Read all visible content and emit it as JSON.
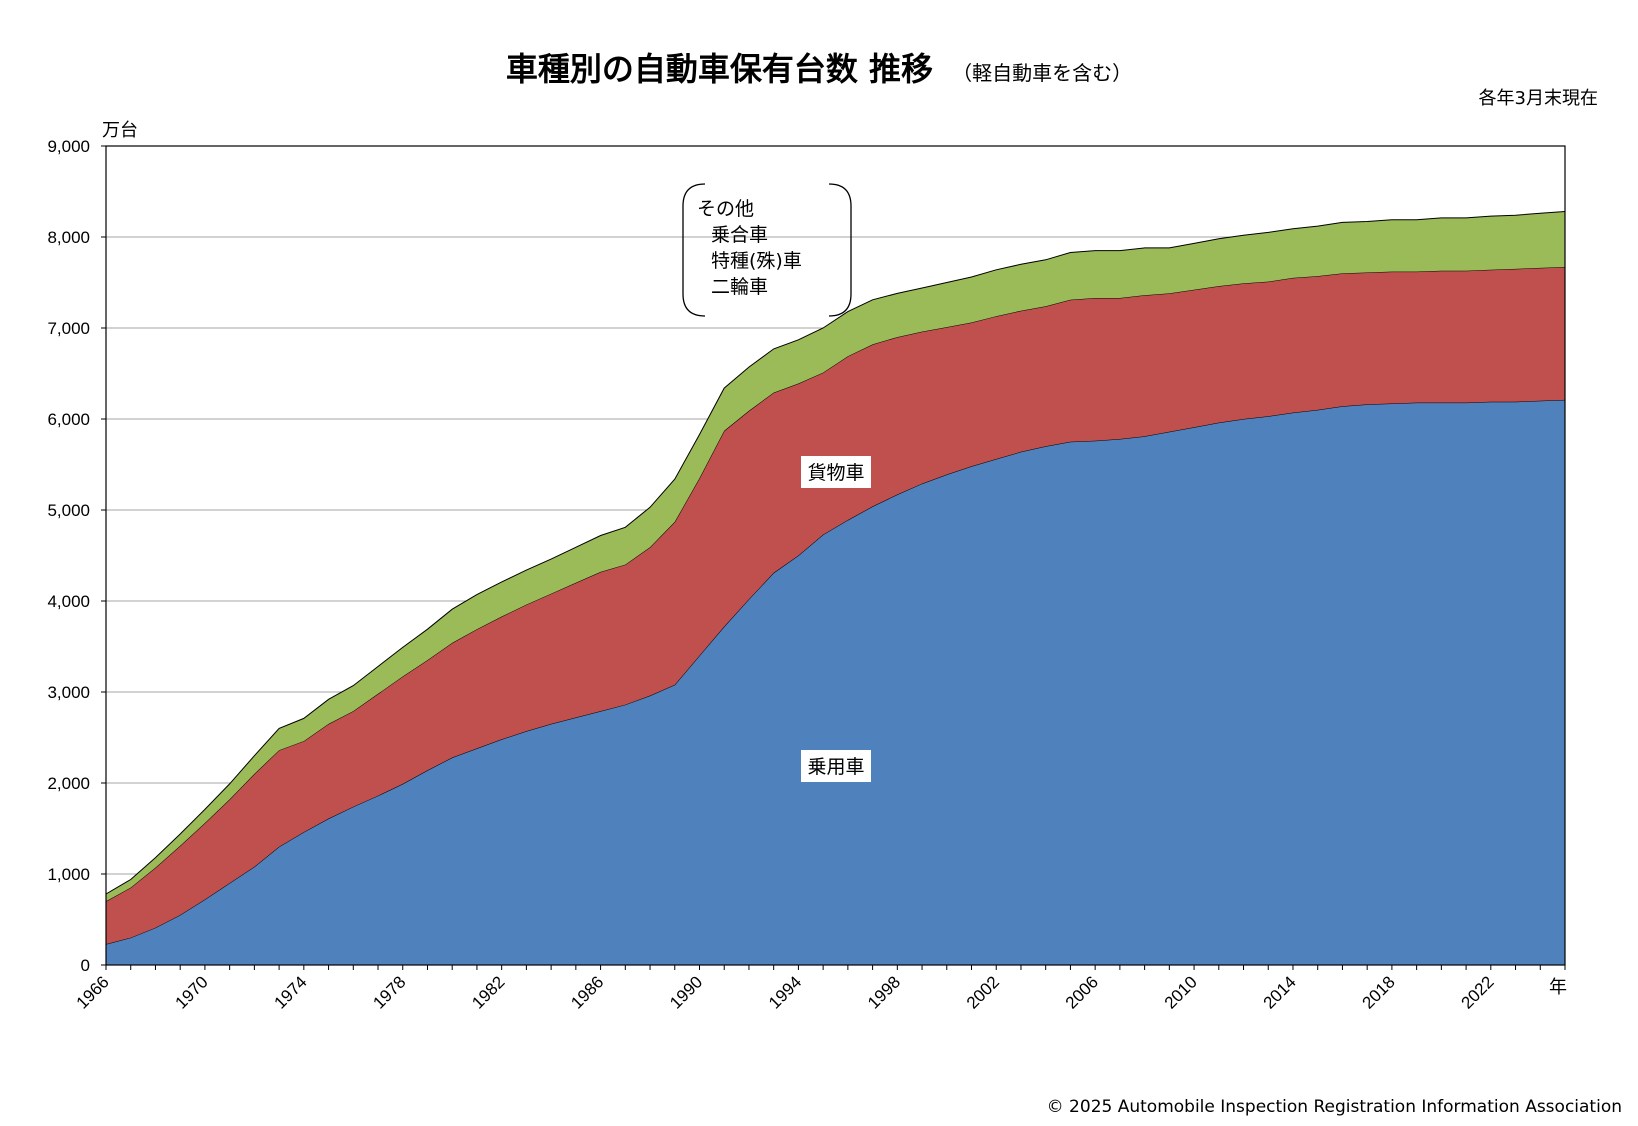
{
  "title": "車種別の自動車保有台数 推移",
  "subtitle": "（軽自動車を含む）",
  "date_note": "各年3月末現在",
  "copyright": "© 2025 Automobile Inspection Registration Information Association",
  "colors": {
    "passenger": "#4f81bd",
    "freight": "#c0504d",
    "other": "#9bbb59",
    "grid": "#a6a6a6"
  },
  "chart_data": {
    "type": "area",
    "stacked": true,
    "y_unit_label": "万台",
    "x_unit_label": "年",
    "ylim": [
      0,
      9000
    ],
    "y_ticks": [
      0,
      1000,
      2000,
      3000,
      4000,
      5000,
      6000,
      7000,
      8000,
      9000
    ],
    "y_tick_labels": [
      "0",
      "1,000",
      "2,000",
      "3,000",
      "4,000",
      "5,000",
      "6,000",
      "7,000",
      "8,000",
      "9,000"
    ],
    "x_tick_labels": [
      "1966",
      "1970",
      "1974",
      "1978",
      "1982",
      "1986",
      "1990",
      "1994",
      "1998",
      "2002",
      "2006",
      "2010",
      "2014",
      "2018",
      "2022"
    ],
    "grid": "horizontal",
    "x": [
      1966,
      1967,
      1968,
      1969,
      1970,
      1971,
      1972,
      1973,
      1974,
      1975,
      1976,
      1977,
      1978,
      1979,
      1980,
      1981,
      1982,
      1983,
      1984,
      1985,
      1986,
      1987,
      1988,
      1989,
      1990,
      1991,
      1992,
      1993,
      1994,
      1995,
      1996,
      1997,
      1998,
      1999,
      2000,
      2001,
      2002,
      2003,
      2004,
      2005,
      2006,
      2007,
      2008,
      2009,
      2010,
      2011,
      2012,
      2013,
      2014,
      2015,
      2016,
      2017,
      2018,
      2019,
      2020,
      2021,
      2022,
      2023,
      2024,
      2025
    ],
    "series": [
      {
        "name": "乗用車",
        "values": [
          230,
          300,
          410,
          550,
          720,
          900,
          1080,
          1300,
          1460,
          1610,
          1740,
          1860,
          1990,
          2140,
          2280,
          2380,
          2480,
          2570,
          2650,
          2720,
          2790,
          2860,
          2960,
          3080,
          3400,
          3720,
          4020,
          4310,
          4500,
          4730,
          4890,
          5040,
          5170,
          5290,
          5390,
          5480,
          5560,
          5640,
          5700,
          5750,
          5760,
          5780,
          5810,
          5860,
          5910,
          5960,
          6000,
          6030,
          6070,
          6100,
          6140,
          6160,
          6170,
          6180,
          6180,
          6180,
          6190,
          6190,
          6200,
          6210
        ]
      },
      {
        "name": "貨物車",
        "values": [
          470,
          550,
          660,
          760,
          840,
          920,
          1020,
          1060,
          1000,
          1040,
          1050,
          1120,
          1180,
          1210,
          1260,
          1310,
          1350,
          1390,
          1430,
          1480,
          1530,
          1540,
          1630,
          1790,
          1950,
          2150,
          2070,
          1980,
          1890,
          1780,
          1800,
          1780,
          1730,
          1670,
          1620,
          1580,
          1570,
          1550,
          1540,
          1560,
          1570,
          1550,
          1550,
          1520,
          1510,
          1500,
          1490,
          1480,
          1480,
          1470,
          1460,
          1450,
          1450,
          1440,
          1450,
          1450,
          1450,
          1460,
          1460,
          1460
        ]
      },
      {
        "name": "その他 乗合車 特種(殊)車 二輪車",
        "values": [
          80,
          90,
          110,
          130,
          150,
          170,
          200,
          240,
          250,
          270,
          280,
          300,
          320,
          340,
          370,
          380,
          380,
          380,
          380,
          390,
          400,
          410,
          440,
          470,
          480,
          470,
          480,
          480,
          480,
          490,
          490,
          490,
          480,
          480,
          490,
          500,
          510,
          510,
          510,
          520,
          520,
          520,
          520,
          500,
          510,
          520,
          530,
          540,
          540,
          550,
          560,
          560,
          570,
          570,
          580,
          580,
          590,
          590,
          600,
          610
        ]
      }
    ],
    "series_labels": {
      "passenger": "乗用車",
      "freight": "貨物車",
      "other_lines": [
        "その他",
        "乗合車",
        "特種(殊)車",
        "二輪車"
      ]
    }
  }
}
